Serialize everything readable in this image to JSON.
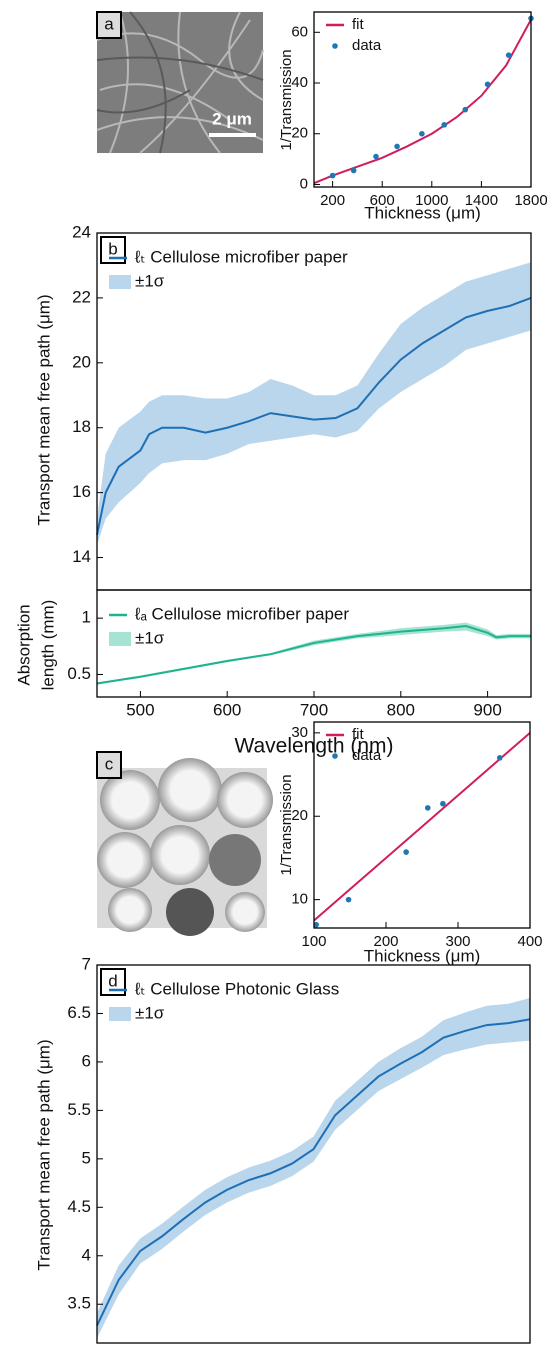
{
  "panels": [
    {
      "label": "a",
      "annotation": "2 μm"
    },
    {
      "label": "b"
    },
    {
      "label": "c"
    },
    {
      "label": "d"
    }
  ],
  "chart_data": [
    {
      "type": "line",
      "xlabel": "Thickness (μm)",
      "ylabel": "1/Transmission",
      "xlim": [
        50,
        1800
      ],
      "ylim": [
        -1,
        68
      ],
      "xticks": [
        200,
        600,
        1000,
        1400,
        1800
      ],
      "yticks": [
        0,
        20,
        40,
        60
      ],
      "legend": "upper left",
      "series": [
        {
          "name": "fit",
          "type": "line",
          "color": "#d01d5d",
          "x": [
            50,
            200,
            400,
            600,
            800,
            1000,
            1200,
            1400,
            1600,
            1800
          ],
          "values": [
            0.5,
            3.5,
            7,
            10.5,
            15,
            20,
            26.5,
            35,
            47,
            65
          ]
        },
        {
          "name": "data",
          "type": "scatter",
          "color": "#1f77b4",
          "x": [
            200,
            370,
            550,
            720,
            920,
            1100,
            1270,
            1450,
            1620,
            1800
          ],
          "values": [
            3.5,
            5.5,
            11,
            15,
            20,
            23.5,
            29.5,
            39.5,
            51,
            65.5
          ]
        }
      ]
    },
    {
      "type": "line",
      "ylabel": "Transport mean free path (μm)",
      "xlim": [
        450,
        950
      ],
      "ylim": [
        13,
        24
      ],
      "yticks": [
        14,
        16,
        18,
        20,
        22,
        24
      ],
      "legend": "upper left",
      "series": [
        {
          "name": "ℓₜ Cellulose microfiber paper",
          "type": "line",
          "color": "#1f6fb4",
          "x": [
            450,
            460,
            475,
            500,
            510,
            525,
            550,
            575,
            600,
            625,
            650,
            675,
            700,
            725,
            750,
            775,
            800,
            825,
            850,
            875,
            900,
            925,
            950
          ],
          "values": [
            14.7,
            16.0,
            16.8,
            17.3,
            17.8,
            18.0,
            18.0,
            17.85,
            18.0,
            18.2,
            18.45,
            18.35,
            18.25,
            18.3,
            18.6,
            19.4,
            20.1,
            20.6,
            21.0,
            21.4,
            21.6,
            21.75,
            22.0
          ]
        },
        {
          "name": "±1σ",
          "type": "band",
          "color": "#b9d6ec",
          "x": [
            450,
            460,
            475,
            500,
            510,
            525,
            550,
            575,
            600,
            625,
            650,
            675,
            700,
            725,
            750,
            775,
            800,
            825,
            850,
            875,
            900,
            925,
            950
          ],
          "lower": [
            14.4,
            15.2,
            15.7,
            16.3,
            16.6,
            16.9,
            17.0,
            17.0,
            17.2,
            17.5,
            17.6,
            17.7,
            17.8,
            17.7,
            17.9,
            18.6,
            19.1,
            19.5,
            19.9,
            20.4,
            20.6,
            20.8,
            21.0
          ],
          "upper": [
            15.2,
            17.2,
            18.0,
            18.5,
            18.8,
            19.0,
            19.0,
            18.9,
            18.9,
            19.1,
            19.5,
            19.3,
            19.0,
            19.0,
            19.3,
            20.3,
            21.2,
            21.7,
            22.1,
            22.5,
            22.7,
            22.9,
            23.1
          ]
        }
      ]
    },
    {
      "type": "line",
      "xlabel": "Wavelength (nm)",
      "ylabel": [
        "Absorption",
        "length (mm)"
      ],
      "xlim": [
        450,
        950
      ],
      "ylim": [
        0.3,
        1.25
      ],
      "xticks": [
        500,
        600,
        700,
        800,
        900
      ],
      "yticks": [
        0.5,
        1
      ],
      "legend": "upper left",
      "series": [
        {
          "name": "ℓₐ Cellulose microfiber paper",
          "type": "line",
          "color": "#1fb38f",
          "x": [
            450,
            500,
            550,
            600,
            650,
            700,
            750,
            800,
            850,
            875,
            900,
            910,
            925,
            950
          ],
          "values": [
            0.42,
            0.48,
            0.55,
            0.62,
            0.68,
            0.78,
            0.84,
            0.88,
            0.91,
            0.93,
            0.87,
            0.83,
            0.84,
            0.84
          ]
        },
        {
          "name": "±1σ",
          "type": "band",
          "color": "#a6e3d3",
          "x": [
            450,
            500,
            550,
            600,
            650,
            700,
            750,
            800,
            850,
            875,
            900,
            910,
            925,
            950
          ],
          "lower": [
            0.41,
            0.47,
            0.54,
            0.61,
            0.67,
            0.76,
            0.82,
            0.85,
            0.88,
            0.89,
            0.84,
            0.81,
            0.82,
            0.82
          ],
          "upper": [
            0.43,
            0.49,
            0.56,
            0.63,
            0.69,
            0.8,
            0.86,
            0.91,
            0.94,
            0.96,
            0.9,
            0.85,
            0.86,
            0.86
          ]
        }
      ]
    },
    {
      "type": "line",
      "xlabel": "Thickness (μm)",
      "ylabel": "1/Transmission",
      "xlim": [
        100,
        400
      ],
      "ylim": [
        6.6,
        31.3
      ],
      "xticks": [
        100,
        200,
        300,
        400
      ],
      "yticks": [
        10,
        20,
        30
      ],
      "legend": "upper left",
      "series": [
        {
          "name": "fit",
          "type": "line",
          "color": "#d01d5d",
          "x": [
            100,
            400
          ],
          "values": [
            7.5,
            30
          ]
        },
        {
          "name": "data",
          "type": "scatter",
          "color": "#1f77b4",
          "x": [
            103,
            148,
            228,
            258,
            279,
            358
          ],
          "values": [
            7,
            10,
            15.7,
            21,
            21.5,
            27
          ]
        }
      ]
    },
    {
      "type": "line",
      "ylabel": "Transport mean free path (μm)",
      "xlim": [
        450,
        950
      ],
      "ylim": [
        3.1,
        7
      ],
      "yticks": [
        3.5,
        4,
        4.5,
        5,
        5.5,
        6,
        6.5,
        7
      ],
      "legend": "upper left",
      "series": [
        {
          "name": "ℓₜ Cellulose Photonic Glass",
          "type": "line",
          "color": "#1f6fb4",
          "x": [
            450,
            475,
            500,
            525,
            550,
            575,
            600,
            625,
            650,
            675,
            700,
            725,
            750,
            775,
            800,
            825,
            850,
            875,
            900,
            925,
            950
          ],
          "values": [
            3.28,
            3.75,
            4.05,
            4.2,
            4.38,
            4.55,
            4.68,
            4.78,
            4.85,
            4.95,
            5.1,
            5.45,
            5.65,
            5.85,
            5.98,
            6.1,
            6.25,
            6.32,
            6.38,
            6.4,
            6.44
          ]
        },
        {
          "name": "±1σ",
          "type": "band",
          "color": "#b9d6ec",
          "x": [
            450,
            475,
            500,
            525,
            550,
            575,
            600,
            625,
            650,
            675,
            700,
            725,
            750,
            775,
            800,
            825,
            850,
            875,
            900,
            925,
            950
          ],
          "lower": [
            3.15,
            3.6,
            3.92,
            4.07,
            4.25,
            4.42,
            4.55,
            4.65,
            4.72,
            4.82,
            4.97,
            5.3,
            5.5,
            5.7,
            5.82,
            5.94,
            6.07,
            6.13,
            6.18,
            6.2,
            6.22
          ],
          "upper": [
            3.41,
            3.9,
            4.18,
            4.33,
            4.51,
            4.68,
            4.81,
            4.91,
            4.98,
            5.08,
            5.23,
            5.6,
            5.8,
            6.0,
            6.14,
            6.26,
            6.43,
            6.51,
            6.58,
            6.6,
            6.66
          ]
        }
      ]
    }
  ]
}
